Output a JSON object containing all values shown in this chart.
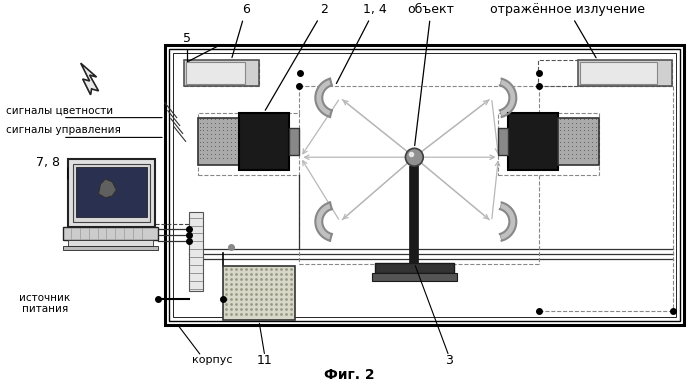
{
  "title": "Фиг. 2",
  "bg_color": "#ffffff",
  "label_6": "6",
  "label_2": "2",
  "label_14": "1, 4",
  "label_obj": "объект",
  "label_ref": "отражённое излучение",
  "label_5": "5",
  "label_sig_color": "сигналы цветности",
  "label_sig_ctrl": "сигналы управления",
  "label_78": "7, 8",
  "label_source": "источник\nпитания",
  "label_korpus": "корпус",
  "label_11": "11",
  "label_3": "3"
}
